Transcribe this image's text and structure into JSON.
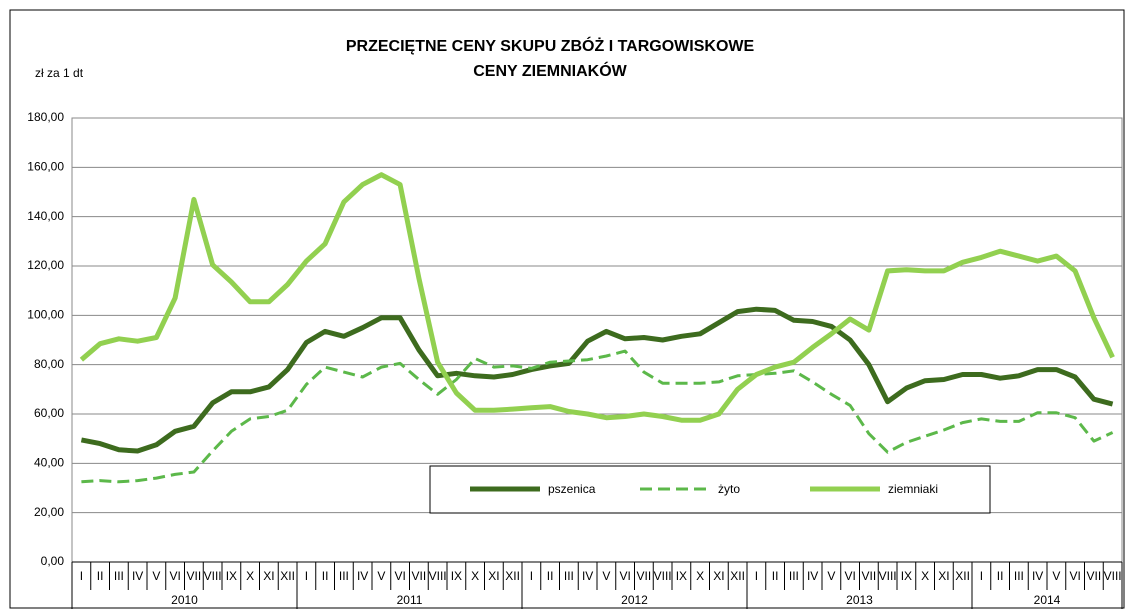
{
  "chart_data": {
    "type": "line",
    "title": [
      "PRZECIĘTNE CENY SKUPU ZBÓŻ I TARGOWISKOWE",
      "CENY ZIEMNIAKÓW"
    ],
    "y_label": "zł za 1 dt",
    "categories": [
      "I",
      "II",
      "III",
      "IV",
      "V",
      "VI",
      "VII",
      "VIII",
      "IX",
      "X",
      "XI",
      "XII",
      "I",
      "II",
      "III",
      "IV",
      "V",
      "VI",
      "VII",
      "VIII",
      "IX",
      "X",
      "XI",
      "XII",
      "I",
      "II",
      "III",
      "IV",
      "V",
      "VI",
      "VII",
      "VIII",
      "IX",
      "X",
      "XI",
      "XII",
      "I",
      "II",
      "III",
      "IV",
      "V",
      "VI",
      "VII",
      "VIII",
      "IX",
      "X",
      "XI",
      "XII",
      "I",
      "II",
      "III",
      "IV",
      "V",
      "VI",
      "VII",
      "VIII"
    ],
    "category_groups": [
      {
        "label": "2010",
        "size": 12
      },
      {
        "label": "2011",
        "size": 12
      },
      {
        "label": "2012",
        "size": 12
      },
      {
        "label": "2013",
        "size": 12
      },
      {
        "label": "2014",
        "size": 8
      }
    ],
    "series": [
      {
        "name": "pszenica",
        "color": "#3d6b1e",
        "dashed": false,
        "values": [
          49.5,
          48,
          45.5,
          45,
          47.5,
          53,
          55,
          64.5,
          69,
          69,
          71,
          78,
          89,
          93.5,
          91.5,
          95,
          99,
          99,
          86,
          75.5,
          76.5,
          75.5,
          75,
          76,
          78,
          79.5,
          80.5,
          89.5,
          93.5,
          90.5,
          91,
          90,
          91.5,
          92.5,
          97,
          101.5,
          102.5,
          102,
          98,
          97.5,
          95.5,
          90,
          80,
          65,
          70.5,
          73.5,
          74,
          76,
          76,
          74.5,
          75.5,
          78,
          78,
          75,
          66,
          64
        ]
      },
      {
        "name": "żyto",
        "color": "#5cb84a",
        "dashed": true,
        "values": [
          32.5,
          33,
          32.5,
          33,
          34,
          35.5,
          36.5,
          45,
          53,
          58,
          59,
          61.5,
          72,
          79,
          77,
          75,
          79,
          80.5,
          74,
          68,
          74,
          82.5,
          79,
          79.5,
          78.5,
          81,
          81.5,
          82,
          83.5,
          85.5,
          77,
          72.5,
          72.5,
          72.5,
          73,
          75.5,
          76,
          76.5,
          77.5,
          73,
          68,
          63.5,
          52,
          44.5,
          48.5,
          51,
          53.5,
          56.5,
          58,
          57,
          57,
          60.5,
          60.5,
          58.5,
          49,
          52.5
        ]
      },
      {
        "name": "ziemniaki",
        "color": "#92d050",
        "dashed": false,
        "values": [
          82,
          88.5,
          90.5,
          89.5,
          91,
          107,
          147,
          120.5,
          113.5,
          105.5,
          105.5,
          112.5,
          122,
          129,
          146,
          153,
          157,
          153,
          115,
          81,
          68.5,
          61.5,
          61.5,
          62,
          62.5,
          63,
          61,
          60,
          58.5,
          59,
          60,
          59,
          57.5,
          57.5,
          60,
          70,
          76,
          79,
          81,
          87,
          92.5,
          98.5,
          94,
          118,
          118.5,
          118,
          118,
          121.5,
          123.5,
          126,
          124,
          122,
          124,
          118,
          99,
          83
        ]
      }
    ],
    "ylim": [
      0,
      180
    ],
    "yticks": [
      {
        "value": 0,
        "label": "0,00"
      },
      {
        "value": 20,
        "label": "20,00"
      },
      {
        "value": 40,
        "label": "40,00"
      },
      {
        "value": 60,
        "label": "60,00"
      },
      {
        "value": 80,
        "label": "80,00"
      },
      {
        "value": 100,
        "label": "100,00"
      },
      {
        "value": 120,
        "label": "120,00"
      },
      {
        "value": 140,
        "label": "140,00"
      },
      {
        "value": 160,
        "label": "160,00"
      },
      {
        "value": 180,
        "label": "180,00"
      }
    ],
    "grid": true
  }
}
